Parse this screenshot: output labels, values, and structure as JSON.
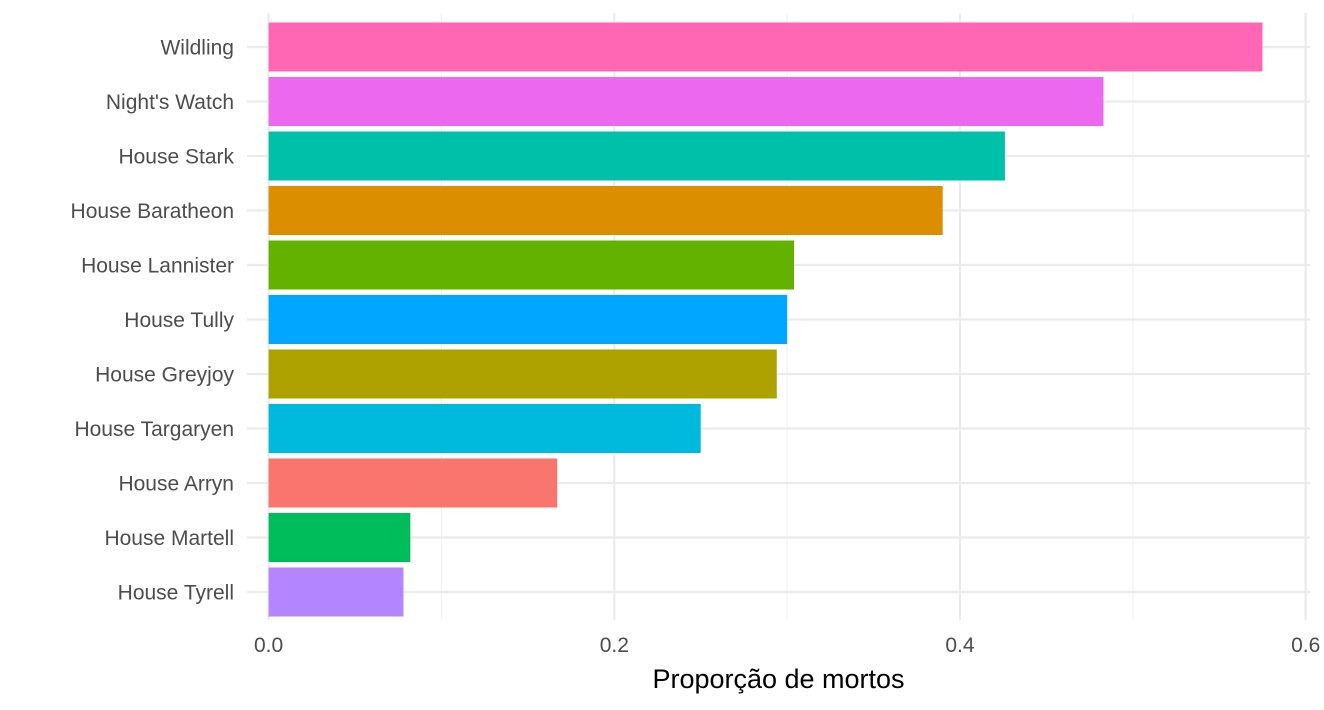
{
  "chart_data": {
    "type": "bar",
    "orientation": "horizontal",
    "title": "",
    "xlabel": "Proporção de mortos",
    "ylabel": "",
    "xlim": [
      -0.0125,
      0.6025
    ],
    "x_ticks": [
      0.0,
      0.2,
      0.4,
      0.6
    ],
    "x_tick_labels": [
      "0.0",
      "0.2",
      "0.4",
      "0.6"
    ],
    "grid": true,
    "legend": "none",
    "categories": [
      "Wildling",
      "Night's Watch",
      "House Stark",
      "House Baratheon",
      "House Lannister",
      "House Tully",
      "House Greyjoy",
      "House Targaryen",
      "House Arryn",
      "House Martell",
      "House Tyrell"
    ],
    "values": [
      0.575,
      0.483,
      0.426,
      0.39,
      0.304,
      0.3,
      0.294,
      0.25,
      0.167,
      0.082,
      0.078
    ],
    "colors": [
      "#FF66B4",
      "#EC69EF",
      "#00C0AA",
      "#DB8E00",
      "#64B200",
      "#00A6FF",
      "#AEA200",
      "#00BADE",
      "#F8766D",
      "#00BD5C",
      "#B385FF"
    ]
  }
}
